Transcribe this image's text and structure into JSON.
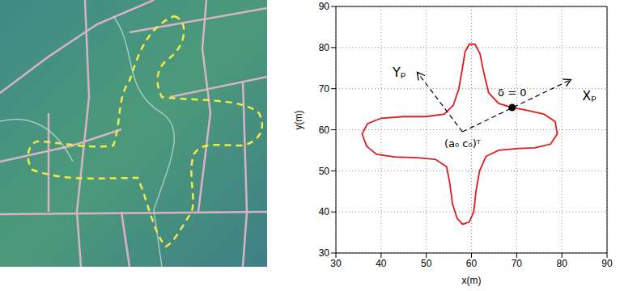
{
  "chart_data": {
    "type": "line",
    "xlabel": "x(m)",
    "ylabel": "y(m)",
    "xlim": [
      30,
      90
    ],
    "ylim": [
      30,
      90
    ],
    "xticks": [
      30,
      40,
      50,
      60,
      70,
      80,
      90
    ],
    "yticks": [
      30,
      40,
      50,
      60,
      70,
      80,
      90
    ],
    "grid": true,
    "color": "#e31a1c",
    "line_style": "solid",
    "x": [
      69,
      66,
      63.8,
      62.7,
      61.9,
      60.8,
      59.5,
      58.6,
      58,
      57.2,
      56,
      54,
      50,
      45,
      40,
      37,
      35.8,
      36.8,
      39,
      43,
      48,
      52,
      54.5,
      55.2,
      55.8,
      56.8,
      58,
      59.5,
      60.5,
      61,
      61.8,
      63.2,
      66,
      70,
      74,
      77.5,
      79,
      78.5,
      76,
      72,
      69
    ],
    "values": [
      65.4,
      66.4,
      69,
      74,
      78.5,
      80.8,
      80.8,
      79,
      75,
      70,
      66,
      63.8,
      63.2,
      63.2,
      62.8,
      61.5,
      59,
      56,
      54,
      53.4,
      53.2,
      52.8,
      51,
      47,
      42,
      38.5,
      37,
      37.5,
      40,
      45,
      50,
      53.5,
      55,
      55.4,
      55.6,
      56.5,
      59,
      62,
      63.8,
      64.8,
      65.4
    ],
    "annotations": [
      {
        "text": "δ = 0",
        "x": 69,
        "y": 65.4,
        "marker": "dot"
      },
      {
        "text": "(a₀ c₀)ᵀ",
        "x": 58,
        "y": 59.5
      }
    ],
    "arrows": [
      {
        "label": "Xₚ",
        "x": [
          58,
          82
        ],
        "y": [
          59.5,
          72.2
        ],
        "line_style": "dashed"
      },
      {
        "label": "Yₚ",
        "x": [
          58,
          48
        ],
        "y": [
          59.5,
          74
        ],
        "line_style": "dashed"
      }
    ]
  }
}
